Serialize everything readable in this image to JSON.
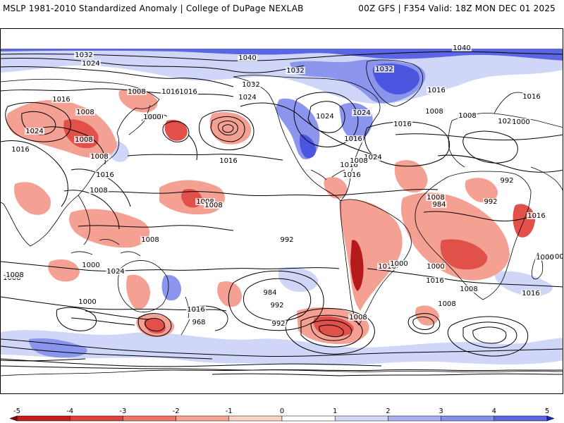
{
  "header": {
    "left_title": "MSLP 1981-2010 Standardized Anomaly | College of DuPage NEXLAB",
    "right_title": "00Z GFS | F354 Valid: 18Z MON DEC 01 2025"
  },
  "map": {
    "isobar_labels": [
      "1040",
      "1040",
      "1032",
      "1024",
      "1032",
      "1024",
      "1016",
      "1016",
      "1008",
      "1008",
      "1024",
      "1016",
      "1000",
      "1008",
      "1016",
      "1032",
      "1024",
      "1024",
      "1032",
      "1016",
      "1016",
      "1008",
      "1008",
      "1024",
      "1016",
      "1008",
      "1016",
      "1008",
      "1008",
      "1008",
      "1016",
      "1000",
      "1024",
      "1016",
      "992",
      "1008",
      "1016",
      "1016",
      "1008",
      "984",
      "992",
      "1000",
      "992",
      "1016",
      "1008",
      "1000",
      "1024",
      "1016",
      "968",
      "984",
      "992",
      "1000",
      "1008",
      "1000",
      "992",
      "1008",
      "1016",
      "1000",
      "1008",
      "1000",
      "1008",
      "1016",
      "1008",
      "1016",
      "1000"
    ],
    "colors": {
      "neg_strong": "#b51a1a",
      "neg_mid": "#e2504a",
      "neg_light": "#f4a093",
      "pos_light": "#cfd6f7",
      "pos_mid": "#8b95ee",
      "pos_strong": "#4b55e0"
    }
  },
  "chart_data": {
    "type": "heatmap",
    "title": "MSLP 1981-2010 Standardized Anomaly",
    "colorbar": {
      "ticks": [
        "-5",
        "-4",
        "-3",
        "-2",
        "-1",
        "0",
        "1",
        "2",
        "3",
        "4",
        "5"
      ],
      "range": [
        -5,
        5
      ],
      "colors": [
        "#8b0000",
        "#c51c1c",
        "#e0403a",
        "#ee7565",
        "#f6a594",
        "#fbd2c8",
        "#ffffff",
        "#d3d8f7",
        "#a9b1f2",
        "#8590ec",
        "#5b66e3",
        "#3a45da",
        "#1a24cc"
      ]
    }
  }
}
